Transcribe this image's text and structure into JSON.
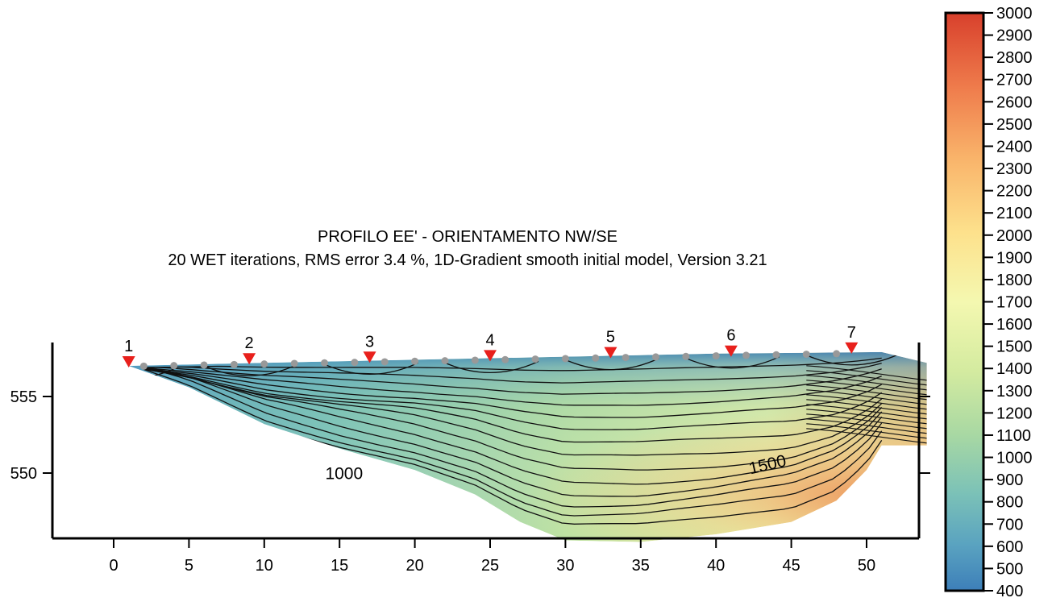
{
  "chart_data": {
    "type": "heatmap",
    "title": "PROFILO EE' - ORIENTAMENTO NW/SE",
    "subtitle": "20 WET iterations, RMS error 3.4 %, 1D-Gradient smooth initial model, Version 3.21",
    "xlabel": "",
    "ylabel": "",
    "x_ticks": [
      0,
      5,
      10,
      15,
      20,
      25,
      30,
      35,
      40,
      45,
      50
    ],
    "y_ticks": [
      555,
      550
    ],
    "xlim": [
      -4,
      54
    ],
    "ylim": [
      545,
      558
    ],
    "colorbar": {
      "ticks": [
        3000,
        2900,
        2800,
        2700,
        2600,
        2500,
        2400,
        2300,
        2200,
        2100,
        2000,
        1900,
        1800,
        1700,
        1600,
        1500,
        1400,
        1300,
        1200,
        1100,
        1000,
        900,
        800,
        700,
        600,
        500,
        400
      ],
      "min": 400,
      "max": 3000,
      "colors": [
        "#3d7fb9",
        "#5aa3c0",
        "#7cc2b7",
        "#a8d8a3",
        "#d4eba0",
        "#f4f8b0",
        "#fde18c",
        "#f9b36a",
        "#ef7c4c",
        "#d8402c"
      ]
    },
    "contour_labels": [
      {
        "text": "1000",
        "x": 15.3,
        "y": 549.6
      },
      {
        "text": "1500",
        "x": 43.5,
        "y": 550.2
      }
    ],
    "geophones": [
      {
        "label": "1",
        "x": 1,
        "y": 557.0
      },
      {
        "label": "2",
        "x": 9,
        "y": 557.2
      },
      {
        "label": "3",
        "x": 17,
        "y": 557.3
      },
      {
        "label": "4",
        "x": 25,
        "y": 557.4
      },
      {
        "label": "5",
        "x": 33,
        "y": 557.6
      },
      {
        "label": "6",
        "x": 41,
        "y": 557.7
      },
      {
        "label": "7",
        "x": 49,
        "y": 557.9
      }
    ],
    "shot_points_x": [
      2,
      4,
      6,
      8,
      10,
      12,
      14,
      16,
      18,
      20,
      22,
      24,
      26,
      28,
      30,
      32,
      34,
      36,
      38,
      40,
      42,
      44,
      46,
      48
    ],
    "surface": [
      [
        1,
        557.0
      ],
      [
        10,
        557.2
      ],
      [
        20,
        557.4
      ],
      [
        30,
        557.6
      ],
      [
        40,
        557.8
      ],
      [
        51,
        557.9
      ]
    ],
    "bottom": [
      [
        1,
        557.0
      ],
      [
        5,
        555.6
      ],
      [
        10,
        553.2
      ],
      [
        15,
        551.6
      ],
      [
        20,
        550.2
      ],
      [
        24,
        548.6
      ],
      [
        27,
        546.8
      ],
      [
        30,
        545.6
      ],
      [
        35,
        545.5
      ],
      [
        40,
        546.0
      ],
      [
        45,
        546.8
      ],
      [
        48,
        548.2
      ],
      [
        50,
        550.2
      ],
      [
        51,
        551.8
      ],
      [
        54,
        551.8
      ]
    ]
  },
  "colors": {
    "geophone_marker": "#e8201c",
    "shot_marker": "#999999",
    "contour": "#111111"
  }
}
